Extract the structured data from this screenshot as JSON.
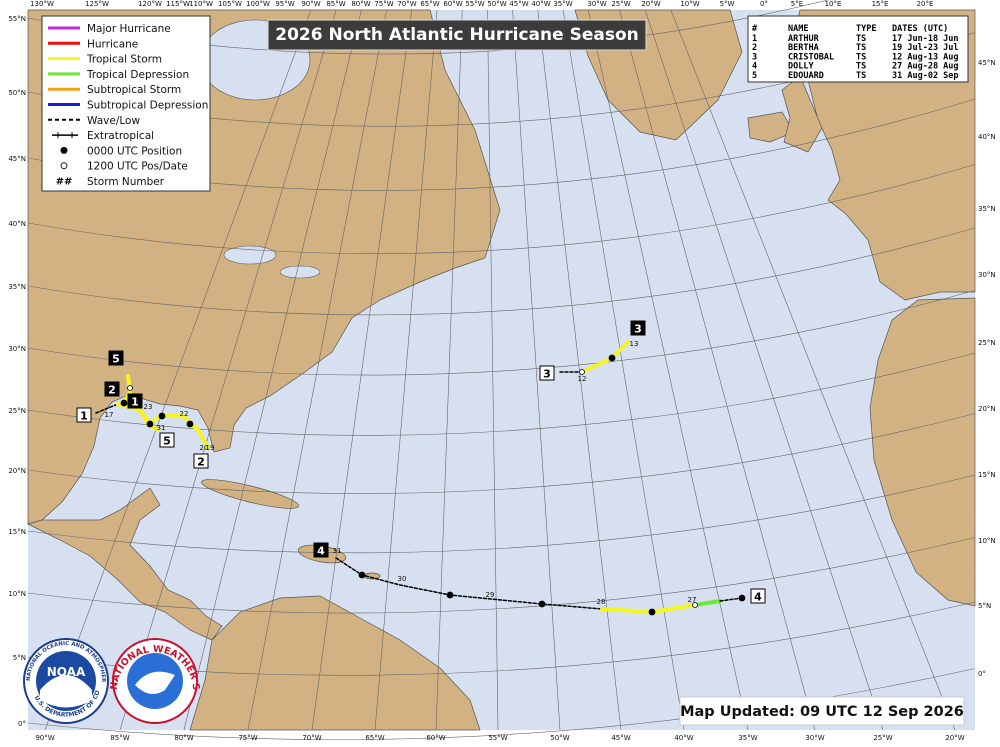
{
  "title": "2026 North Atlantic Hurricane Season",
  "legend": [
    "Major Hurricane",
    "Hurricane",
    "Tropical Storm",
    "Tropical Depression",
    "Subtropical Storm",
    "Subtropical Depression",
    "Wave/Low",
    "Extratropical",
    "0000 UTC Position",
    "1200 UTC Pos/Date",
    "Storm Number"
  ],
  "legend_symbol": "##",
  "table": {
    "header": [
      "#",
      "NAME",
      "TYPE",
      "DATES (UTC)"
    ],
    "rows": [
      [
        "1",
        "ARTHUR",
        "TS",
        "17 Jun-18 Jun"
      ],
      [
        "2",
        "BERTHA",
        "TS",
        "19 Jul-23 Jul"
      ],
      [
        "3",
        "CRISTOBAL",
        "TS",
        "12 Aug-13 Aug"
      ],
      [
        "4",
        "DOLLY",
        "TS",
        "27 Aug-28 Aug"
      ],
      [
        "5",
        "EDOUARD",
        "TS",
        "31 Aug-02 Sep"
      ]
    ]
  },
  "updated": "Map Updated: 09 UTC 12 Sep 2026",
  "top_lon_labels": [
    "130°W",
    "125°W",
    "120°W",
    "115°W",
    "110°W",
    "105°W",
    "100°W",
    "95°W",
    "90°W",
    "85°W",
    "80°W",
    "75°W",
    "70°W",
    "65°W",
    "60°W",
    "55°W",
    "50°W",
    "45°W",
    "40°W",
    "35°W",
    "30°W",
    "25°W",
    "20°W",
    "10°W",
    "5°W",
    "0°",
    "5°E",
    "10°E",
    "15°E",
    "20°E"
  ],
  "bottom_lon_labels": [
    "90°W",
    "85°W",
    "80°W",
    "75°W",
    "70°W",
    "65°W",
    "60°W",
    "55°W",
    "50°W",
    "45°W",
    "40°W",
    "35°W",
    "30°W",
    "25°W",
    "20°W"
  ],
  "left_lat_labels": [
    "55°N",
    "50°N",
    "45°N",
    "40°N",
    "35°N",
    "30°N",
    "25°N",
    "20°N",
    "15°N",
    "10°N",
    "5°N",
    "0°"
  ],
  "right_lat_labels": [
    "45°N",
    "40°N",
    "35°N",
    "30°N",
    "25°N",
    "20°N",
    "15°N",
    "10°N",
    "5°N",
    "0°"
  ],
  "storm_labels": [
    "5",
    "2",
    "1",
    "1",
    "5",
    "2",
    "3",
    "3",
    "4",
    "4"
  ],
  "date_labels": [
    "17",
    "23",
    "31",
    "22",
    "20",
    "19",
    "12",
    "13",
    "31",
    "30",
    "29",
    "28",
    "27"
  ],
  "logos": {
    "noaa": "NOAA",
    "noaa_ring_top": "NATIONAL OCEANIC AND ATMOSPHERIC ADMINISTRATION",
    "noaa_ring_bottom": "U.S. DEPARTMENT OF COMMERCE",
    "nws": "NATIONAL WEATHER SERVICE"
  }
}
